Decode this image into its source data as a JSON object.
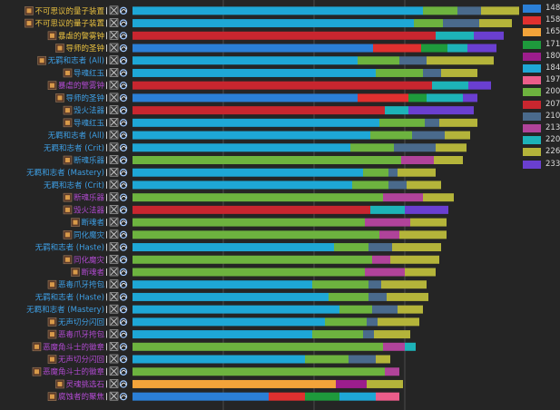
{
  "colors": {
    "148": "#2b7fd6",
    "158": "#e0302f",
    "165": "#f2a33a",
    "171": "#1e9a3c",
    "180": "#9c1d8c",
    "184": "#1ea7d6",
    "197": "#ec5d8a",
    "200": "#6db33f",
    "207": "#c8262f",
    "210": "#4a6a8c",
    "213": "#b0439a",
    "220": "#1db3b8",
    "226": "#b4b43a",
    "233": "#6a3fd0"
  },
  "chart_data": {
    "type": "bar",
    "orientation": "horizontal",
    "stacked": true,
    "legend": {
      "position": "right",
      "entries": [
        "148",
        "158",
        "165",
        "171",
        "180",
        "184",
        "197",
        "200",
        "207",
        "210",
        "213",
        "220",
        "226",
        "233"
      ]
    },
    "rows": [
      {
        "label": "不可思议的量子装置",
        "color": "#e8c040",
        "icon": "gear",
        "segments": [
          {
            "k": "184",
            "v": 320
          },
          {
            "k": "200",
            "v": 38
          },
          {
            "k": "210",
            "v": 26
          },
          {
            "k": "226",
            "v": 42
          }
        ]
      },
      {
        "label": "不可思议的量子装置",
        "color": "#e8c040",
        "icon": "gear",
        "segments": [
          {
            "k": "184",
            "v": 310
          },
          {
            "k": "200",
            "v": 32
          },
          {
            "k": "210",
            "v": 40
          },
          {
            "k": "226",
            "v": 36
          }
        ]
      },
      {
        "label": "暴虐的警雾钟",
        "color": "#e8c040",
        "icon": "bell",
        "segments": [
          {
            "k": "207",
            "v": 334
          },
          {
            "k": "220",
            "v": 42
          },
          {
            "k": "233",
            "v": 33
          }
        ]
      },
      {
        "label": "导师的圣钟",
        "color": "#e8c040",
        "icon": "bell",
        "segments": [
          {
            "k": "148",
            "v": 265
          },
          {
            "k": "158",
            "v": 53
          },
          {
            "k": "171",
            "v": 29
          },
          {
            "k": "220",
            "v": 22
          },
          {
            "k": "233",
            "v": 32
          }
        ]
      },
      {
        "label": "无羁和志者 (All)",
        "color": "#3ea0e6",
        "icon": "rogue",
        "segments": [
          {
            "k": "184",
            "v": 248
          },
          {
            "k": "200",
            "v": 46
          },
          {
            "k": "210",
            "v": 30
          },
          {
            "k": "226",
            "v": 74
          }
        ]
      },
      {
        "label": "导魂红玉",
        "color": "#3ea0e6",
        "icon": "gem",
        "segments": [
          {
            "k": "184",
            "v": 268
          },
          {
            "k": "200",
            "v": 52
          },
          {
            "k": "210",
            "v": 20
          },
          {
            "k": "226",
            "v": 40
          }
        ]
      },
      {
        "label": "暴虐的警雾钟",
        "color": "#b04ad0",
        "icon": "bell",
        "segments": [
          {
            "k": "207",
            "v": 330
          },
          {
            "k": "220",
            "v": 40
          },
          {
            "k": "233",
            "v": 25
          }
        ]
      },
      {
        "label": "导师的圣钟",
        "color": "#3ea0e6",
        "icon": "bell",
        "segments": [
          {
            "k": "148",
            "v": 248
          },
          {
            "k": "158",
            "v": 56
          },
          {
            "k": "171",
            "v": 20
          },
          {
            "k": "220",
            "v": 40
          },
          {
            "k": "233",
            "v": 16
          }
        ]
      },
      {
        "label": "毁火法器",
        "color": "#3ea0e6",
        "icon": "flame",
        "segments": [
          {
            "k": "207",
            "v": 278
          },
          {
            "k": "220",
            "v": 26
          },
          {
            "k": "233",
            "v": 72
          }
        ]
      },
      {
        "label": "导魂红玉",
        "color": "#3ea0e6",
        "icon": "gem",
        "segments": [
          {
            "k": "184",
            "v": 272
          },
          {
            "k": "200",
            "v": 50
          },
          {
            "k": "210",
            "v": 16
          },
          {
            "k": "226",
            "v": 42
          }
        ]
      },
      {
        "label": "无羁和志者 (All)",
        "color": "#3ea0e6",
        "icon": "",
        "segments": [
          {
            "k": "184",
            "v": 262
          },
          {
            "k": "200",
            "v": 46
          },
          {
            "k": "210",
            "v": 36
          },
          {
            "k": "226",
            "v": 28
          }
        ]
      },
      {
        "label": "无羁和志者 (Crit)",
        "color": "#3ea0e6",
        "icon": "",
        "segments": [
          {
            "k": "184",
            "v": 240
          },
          {
            "k": "200",
            "v": 48
          },
          {
            "k": "210",
            "v": 46
          },
          {
            "k": "226",
            "v": 34
          }
        ]
      },
      {
        "label": "断魂乐器",
        "color": "#3ea0e6",
        "icon": "harp",
        "segments": [
          {
            "k": "200",
            "v": 296
          },
          {
            "k": "213",
            "v": 36
          },
          {
            "k": "226",
            "v": 32
          }
        ]
      },
      {
        "label": "无羁和志者 (Mastery)",
        "color": "#3ea0e6",
        "icon": "",
        "segments": [
          {
            "k": "184",
            "v": 254
          },
          {
            "k": "200",
            "v": 28
          },
          {
            "k": "210",
            "v": 10
          },
          {
            "k": "226",
            "v": 42
          }
        ]
      },
      {
        "label": "无羁和志者 (Crit)",
        "color": "#3ea0e6",
        "icon": "",
        "segments": [
          {
            "k": "184",
            "v": 242
          },
          {
            "k": "200",
            "v": 40
          },
          {
            "k": "210",
            "v": 20
          },
          {
            "k": "226",
            "v": 38
          }
        ]
      },
      {
        "label": "断魂乐器",
        "color": "#b04ad0",
        "icon": "harp",
        "segments": [
          {
            "k": "200",
            "v": 276
          },
          {
            "k": "213",
            "v": 44
          },
          {
            "k": "226",
            "v": 34
          }
        ]
      },
      {
        "label": "毁火法器",
        "color": "#b04ad0",
        "icon": "flame",
        "segments": [
          {
            "k": "207",
            "v": 262
          },
          {
            "k": "220",
            "v": 38
          },
          {
            "k": "233",
            "v": 48
          }
        ]
      },
      {
        "label": "断魂者",
        "color": "#3ea0e6",
        "icon": "skull",
        "segments": [
          {
            "k": "200",
            "v": 256
          },
          {
            "k": "213",
            "v": 50
          },
          {
            "k": "226",
            "v": 40
          }
        ]
      },
      {
        "label": "同化魔灾",
        "color": "#3ea0e6",
        "icon": "feather",
        "segments": [
          {
            "k": "200",
            "v": 272
          },
          {
            "k": "213",
            "v": 22
          },
          {
            "k": "226",
            "v": 52
          }
        ]
      },
      {
        "label": "无羁和志者 (Haste)",
        "color": "#3ea0e6",
        "icon": "",
        "segments": [
          {
            "k": "184",
            "v": 222
          },
          {
            "k": "200",
            "v": 38
          },
          {
            "k": "210",
            "v": 26
          },
          {
            "k": "226",
            "v": 54
          }
        ]
      },
      {
        "label": "同化魔灾",
        "color": "#b04ad0",
        "icon": "feather",
        "segments": [
          {
            "k": "200",
            "v": 264
          },
          {
            "k": "213",
            "v": 20
          },
          {
            "k": "226",
            "v": 54
          }
        ]
      },
      {
        "label": "断魂者",
        "color": "#b04ad0",
        "icon": "skull",
        "segments": [
          {
            "k": "200",
            "v": 256
          },
          {
            "k": "213",
            "v": 44
          },
          {
            "k": "226",
            "v": 34
          }
        ]
      },
      {
        "label": "恶毒爪牙挎包",
        "color": "#3ea0e6",
        "icon": "bag",
        "segments": [
          {
            "k": "184",
            "v": 198
          },
          {
            "k": "200",
            "v": 62
          },
          {
            "k": "210",
            "v": 14
          },
          {
            "k": "226",
            "v": 50
          }
        ]
      },
      {
        "label": "无羁和志者 (Haste)",
        "color": "#3ea0e6",
        "icon": "",
        "segments": [
          {
            "k": "184",
            "v": 216
          },
          {
            "k": "200",
            "v": 44
          },
          {
            "k": "210",
            "v": 20
          },
          {
            "k": "226",
            "v": 46
          }
        ]
      },
      {
        "label": "无羁和志者 (Mastery)",
        "color": "#3ea0e6",
        "icon": "",
        "segments": [
          {
            "k": "184",
            "v": 228
          },
          {
            "k": "200",
            "v": 36
          },
          {
            "k": "210",
            "v": 28
          },
          {
            "k": "226",
            "v": 28
          }
        ]
      },
      {
        "label": "无声切分闪回",
        "color": "#3ea0e6",
        "icon": "blade",
        "segments": [
          {
            "k": "184",
            "v": 212
          },
          {
            "k": "200",
            "v": 46
          },
          {
            "k": "210",
            "v": 12
          },
          {
            "k": "226",
            "v": 46
          }
        ]
      },
      {
        "label": "恶毒爪牙挎包",
        "color": "#b04ad0",
        "icon": "bag",
        "segments": [
          {
            "k": "184",
            "v": 198
          },
          {
            "k": "200",
            "v": 56
          },
          {
            "k": "210",
            "v": 12
          },
          {
            "k": "226",
            "v": 40
          }
        ]
      },
      {
        "label": "恶魔角斗士的徽章",
        "color": "#b04ad0",
        "icon": "badge",
        "segments": [
          {
            "k": "200",
            "v": 276
          },
          {
            "k": "213",
            "v": 24
          },
          {
            "k": "220",
            "v": 12
          }
        ]
      },
      {
        "label": "无声切分闪回",
        "color": "#b04ad0",
        "icon": "blade",
        "segments": [
          {
            "k": "184",
            "v": 190
          },
          {
            "k": "200",
            "v": 48
          },
          {
            "k": "210",
            "v": 30
          },
          {
            "k": "226",
            "v": 16
          }
        ]
      },
      {
        "label": "恶魔角斗士的徽章",
        "color": "#b04ad0",
        "icon": "badge",
        "segments": [
          {
            "k": "200",
            "v": 278
          },
          {
            "k": "213",
            "v": 16
          }
        ]
      },
      {
        "label": "灵魂挑选石",
        "color": "#b04ad0",
        "icon": "stone",
        "segments": [
          {
            "k": "165",
            "v": 224
          },
          {
            "k": "180",
            "v": 34
          },
          {
            "k": "226",
            "v": 40
          }
        ]
      },
      {
        "label": "腐蚀者的聚焦",
        "color": "#b04ad0",
        "icon": "orb",
        "segments": [
          {
            "k": "148",
            "v": 150
          },
          {
            "k": "158",
            "v": 40
          },
          {
            "k": "171",
            "v": 38
          },
          {
            "k": "184",
            "v": 40
          },
          {
            "k": "197",
            "v": 26
          }
        ]
      }
    ]
  }
}
